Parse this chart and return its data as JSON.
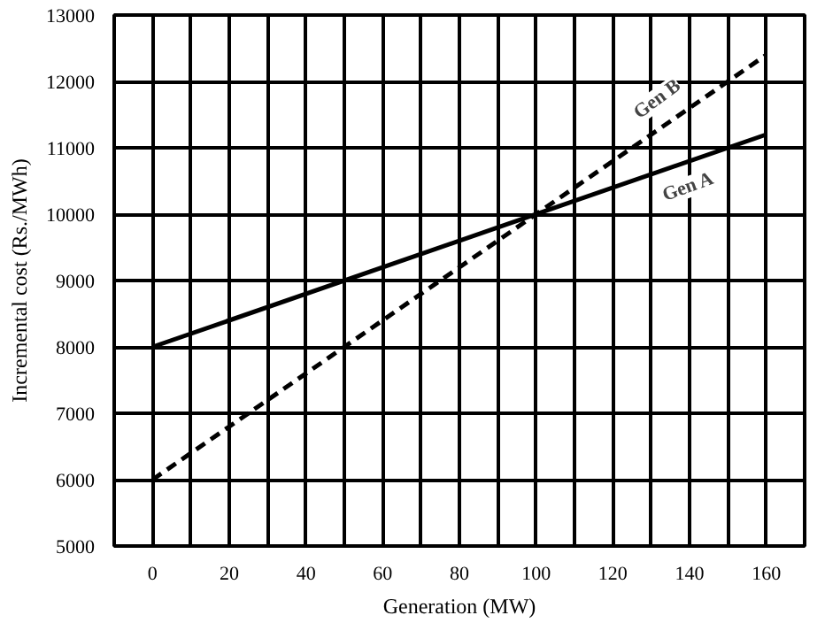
{
  "chart_data": {
    "type": "line",
    "xlabel": "Generation (MW)",
    "ylabel": "Incremental cost (Rs./MWh)",
    "x": [
      0,
      160
    ],
    "series": [
      {
        "name": "Gen A",
        "color": "#000000",
        "values": [
          8000,
          11200
        ],
        "line_style": "solid"
      },
      {
        "name": "Gen B",
        "color": "#000000",
        "values": [
          6000,
          12400
        ],
        "line_style": "dashed"
      }
    ],
    "xlim": [
      -10,
      170
    ],
    "ylim": [
      5000,
      13000
    ],
    "xticks": [
      0,
      {
        "value": 10,
        "label": null
      },
      20,
      {
        "value": 30,
        "label": null
      },
      40,
      {
        "value": 50,
        "label": null
      },
      60,
      {
        "value": 70,
        "label": null
      },
      80,
      {
        "value": 90,
        "label": null
      },
      100,
      {
        "value": 110,
        "label": null
      },
      120,
      {
        "value": 130,
        "label": null
      },
      140,
      {
        "value": 150,
        "label": null
      },
      160
    ],
    "yticks": [
      5000,
      6000,
      7000,
      8000,
      9000,
      10000,
      11000,
      12000,
      13000
    ],
    "grid": true,
    "marker": "none"
  }
}
